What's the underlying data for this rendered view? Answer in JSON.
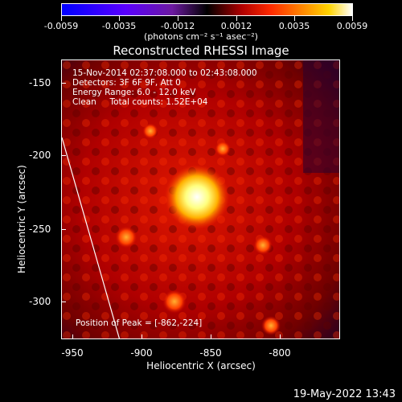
{
  "colorbar": {
    "ticks": [
      "-0.0059",
      "-0.0035",
      "-0.0012",
      "0.0012",
      "0.0035",
      "0.0059"
    ],
    "units": "(photons cm⁻² s⁻¹ asec⁻²)"
  },
  "title": "Reconstructed RHESSI Image",
  "info_lines": [
    "15-Nov-2014 02:37:08.000 to 02:43:08.000",
    "Detectors: 3F 6F 9F, Att 0",
    "Energy Range: 6.0 - 12.0 keV",
    "Clean     Total counts: 1.52E+04"
  ],
  "peak_text": "Position of Peak = [-862,-224]",
  "axes": {
    "xlabel": "Heliocentric X (arcsec)",
    "ylabel": "Heliocentric Y (arcsec)",
    "xticks": [
      "-950",
      "-900",
      "-850",
      "-800"
    ],
    "yticks": [
      "-150",
      "-200",
      "-250",
      "-300"
    ]
  },
  "timestamp": "19-May-2022 13:43"
}
